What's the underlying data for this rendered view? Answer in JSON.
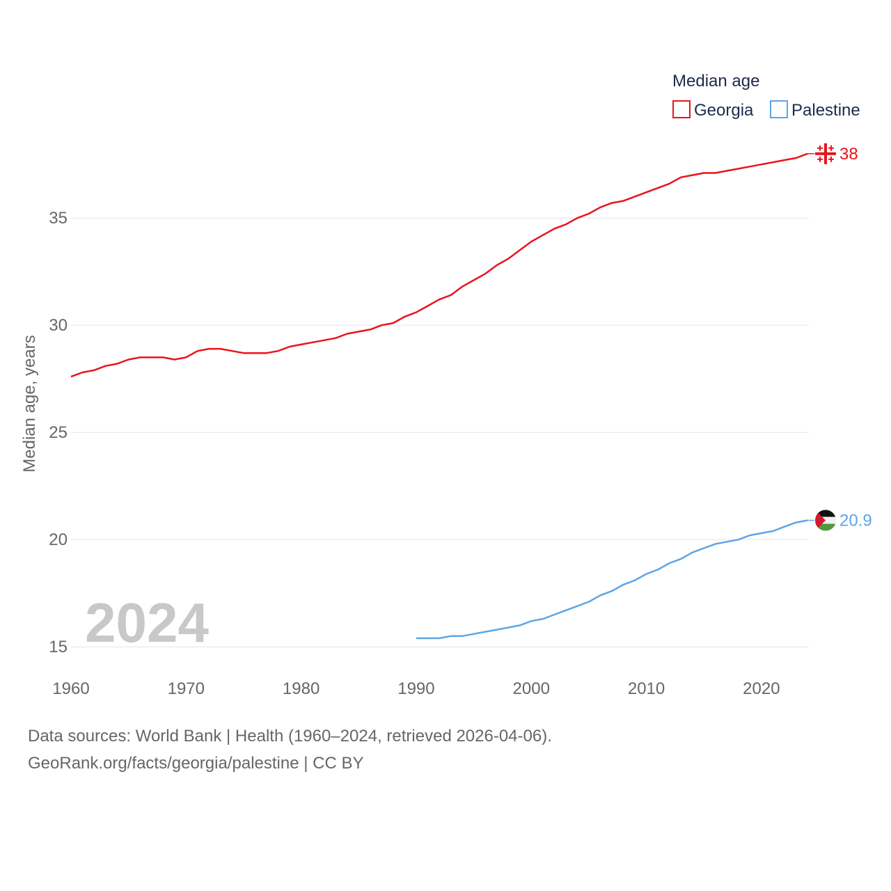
{
  "chart_data": {
    "type": "line",
    "title": "",
    "xlabel": "",
    "ylabel": "Median age, years",
    "xlim": [
      1960,
      2024
    ],
    "ylim": [
      14,
      39
    ],
    "yticks": [
      15,
      20,
      25,
      30,
      35
    ],
    "xticks": [
      1960,
      1970,
      1980,
      1990,
      2000,
      2010,
      2020
    ],
    "grid": "horizontal",
    "legend_title": "Median age",
    "legend_position": "top-right",
    "year_label": "2024",
    "series": [
      {
        "name": "Georgia",
        "color": "#e8141c",
        "end_label": "38",
        "end_icon": "georgia-flag-icon",
        "x": [
          1960,
          1961,
          1962,
          1963,
          1964,
          1965,
          1966,
          1967,
          1968,
          1969,
          1970,
          1971,
          1972,
          1973,
          1974,
          1975,
          1976,
          1977,
          1978,
          1979,
          1980,
          1981,
          1982,
          1983,
          1984,
          1985,
          1986,
          1987,
          1988,
          1989,
          1990,
          1991,
          1992,
          1993,
          1994,
          1995,
          1996,
          1997,
          1998,
          1999,
          2000,
          2001,
          2002,
          2003,
          2004,
          2005,
          2006,
          2007,
          2008,
          2009,
          2010,
          2011,
          2012,
          2013,
          2014,
          2015,
          2016,
          2017,
          2018,
          2019,
          2020,
          2021,
          2022,
          2023,
          2024
        ],
        "values": [
          27.6,
          27.8,
          27.9,
          28.1,
          28.2,
          28.4,
          28.5,
          28.5,
          28.5,
          28.4,
          28.5,
          28.8,
          28.9,
          28.9,
          28.8,
          28.7,
          28.7,
          28.7,
          28.8,
          29.0,
          29.1,
          29.2,
          29.3,
          29.4,
          29.6,
          29.7,
          29.8,
          30.0,
          30.1,
          30.4,
          30.6,
          30.9,
          31.2,
          31.4,
          31.8,
          32.1,
          32.4,
          32.8,
          33.1,
          33.5,
          33.9,
          34.2,
          34.5,
          34.7,
          35.0,
          35.2,
          35.5,
          35.7,
          35.8,
          36.0,
          36.2,
          36.4,
          36.6,
          36.9,
          37.0,
          37.1,
          37.1,
          37.2,
          37.3,
          37.4,
          37.5,
          37.6,
          37.7,
          37.8,
          38.0
        ]
      },
      {
        "name": "Palestine",
        "color": "#5da5e8",
        "end_label": "20.9",
        "end_icon": "palestine-flag-icon",
        "x": [
          1990,
          1991,
          1992,
          1993,
          1994,
          1995,
          1996,
          1997,
          1998,
          1999,
          2000,
          2001,
          2002,
          2003,
          2004,
          2005,
          2006,
          2007,
          2008,
          2009,
          2010,
          2011,
          2012,
          2013,
          2014,
          2015,
          2016,
          2017,
          2018,
          2019,
          2020,
          2021,
          2022,
          2023,
          2024
        ],
        "values": [
          15.4,
          15.4,
          15.4,
          15.5,
          15.5,
          15.6,
          15.7,
          15.8,
          15.9,
          16.0,
          16.2,
          16.3,
          16.5,
          16.7,
          16.9,
          17.1,
          17.4,
          17.6,
          17.9,
          18.1,
          18.4,
          18.6,
          18.9,
          19.1,
          19.4,
          19.6,
          19.8,
          19.9,
          20.0,
          20.2,
          20.3,
          20.4,
          20.6,
          20.8,
          20.9
        ]
      }
    ]
  },
  "footer": {
    "source": "Data sources: World Bank | Health (1960–2024, retrieved 2026-04-06).",
    "credit": "GeoRank.org/facts/georgia/palestine | CC BY"
  }
}
